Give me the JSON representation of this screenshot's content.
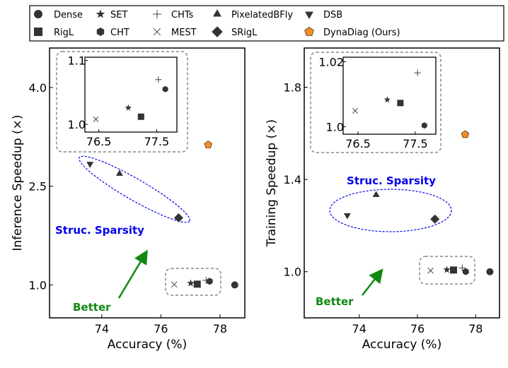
{
  "legend": {
    "placement": "top",
    "entries": [
      {
        "name": "Dense",
        "marker": "circle"
      },
      {
        "name": "RigL",
        "marker": "square"
      },
      {
        "name": "SET",
        "marker": "star"
      },
      {
        "name": "CHT",
        "marker": "hexagon"
      },
      {
        "name": "CHTs",
        "marker": "plus"
      },
      {
        "name": "MEST",
        "marker": "x"
      },
      {
        "name": "PixelatedBFly",
        "marker": "triangle-up"
      },
      {
        "name": "SRigL",
        "marker": "diamond"
      },
      {
        "name": "DSB",
        "marker": "triangle-down"
      },
      {
        "name": "DynaDiag (Ours)",
        "marker": "pentagon"
      }
    ]
  },
  "colors": {
    "marker": "#333333",
    "ours": "#f28e2b",
    "struc": "#0000ee",
    "better": "#118811",
    "box": "#888888"
  },
  "chart_data": [
    {
      "type": "scatter",
      "xlabel": "Accuracy (%)",
      "ylabel": "Inference Speedup (×)",
      "xlim": [
        72.23,
        78.84
      ],
      "ylim": [
        0.5,
        4.6
      ],
      "xticks": [
        74,
        76,
        78
      ],
      "xtick_labels": [
        "74",
        "76",
        "78"
      ],
      "yticks": [
        1.0,
        2.5,
        4.0
      ],
      "ytick_labels": [
        "1.0",
        "2.5",
        "4.0"
      ],
      "grid": false,
      "points": [
        {
          "name": "Dense",
          "x": 78.5,
          "y": 1.0
        },
        {
          "name": "RigL",
          "x": 77.23,
          "y": 1.012
        },
        {
          "name": "SET",
          "x": 77.01,
          "y": 1.026
        },
        {
          "name": "CHT",
          "x": 77.65,
          "y": 1.055
        },
        {
          "name": "CHTs",
          "x": 77.53,
          "y": 1.07
        },
        {
          "name": "MEST",
          "x": 76.45,
          "y": 1.008
        },
        {
          "name": "PixelatedBFly",
          "x": 74.6,
          "y": 2.69
        },
        {
          "name": "SRigL",
          "x": 76.6,
          "y": 2.02
        },
        {
          "name": "DSB",
          "x": 73.6,
          "y": 2.84
        },
        {
          "name": "DynaDiag (Ours)",
          "x": 77.6,
          "y": 3.13
        }
      ],
      "inset": {
        "xlim": [
          76.26,
          77.85
        ],
        "ylim": [
          0.988,
          1.105
        ],
        "xticks": [
          76.5,
          77.5
        ],
        "xtick_labels": [
          "76.5",
          "77.5"
        ],
        "yticks": [
          1.0,
          1.1
        ],
        "ytick_labels": [
          "1.0",
          "1.1"
        ],
        "series": [
          "RigL",
          "SET",
          "CHT",
          "CHTs",
          "MEST"
        ]
      },
      "annotations": {
        "group_label": "Struc. Sparsity",
        "arrow_label": "Better"
      }
    },
    {
      "type": "scatter",
      "xlabel": "Accuracy (%)",
      "ylabel": "Training Speedup (×)",
      "xlim": [
        72.11,
        78.82
      ],
      "ylim": [
        0.8,
        1.97
      ],
      "xticks": [
        74,
        76,
        78
      ],
      "xtick_labels": [
        "74",
        "76",
        "78"
      ],
      "yticks": [
        1.0,
        1.4,
        1.8
      ],
      "ytick_labels": [
        "1.0",
        "1.4",
        "1.8"
      ],
      "grid": false,
      "points": [
        {
          "name": "Dense",
          "x": 78.49,
          "y": 1.0
        },
        {
          "name": "RigL",
          "x": 77.24,
          "y": 1.0073
        },
        {
          "name": "SET",
          "x": 77.01,
          "y": 1.0083
        },
        {
          "name": "CHT",
          "x": 77.66,
          "y": 1.0004
        },
        {
          "name": "CHTs",
          "x": 77.54,
          "y": 1.0166
        },
        {
          "name": "MEST",
          "x": 76.45,
          "y": 1.0049
        },
        {
          "name": "PixelatedBFly",
          "x": 74.58,
          "y": 1.333
        },
        {
          "name": "SRigL",
          "x": 76.6,
          "y": 1.228
        },
        {
          "name": "DSB",
          "x": 73.59,
          "y": 1.245
        },
        {
          "name": "DynaDiag (Ours)",
          "x": 77.64,
          "y": 1.595
        }
      ],
      "inset": {
        "xlim": [
          76.24,
          77.86
        ],
        "ylim": [
          0.9977,
          1.0214
        ],
        "xticks": [
          76.5,
          77.5
        ],
        "xtick_labels": [
          "76.5",
          "77.5"
        ],
        "yticks": [
          1.0,
          1.02
        ],
        "ytick_labels": [
          "1.0",
          "1.02"
        ],
        "series": [
          "RigL",
          "SET",
          "CHT",
          "CHTs",
          "MEST"
        ]
      },
      "annotations": {
        "group_label": "Struc. Sparsity",
        "arrow_label": "Better"
      }
    }
  ]
}
